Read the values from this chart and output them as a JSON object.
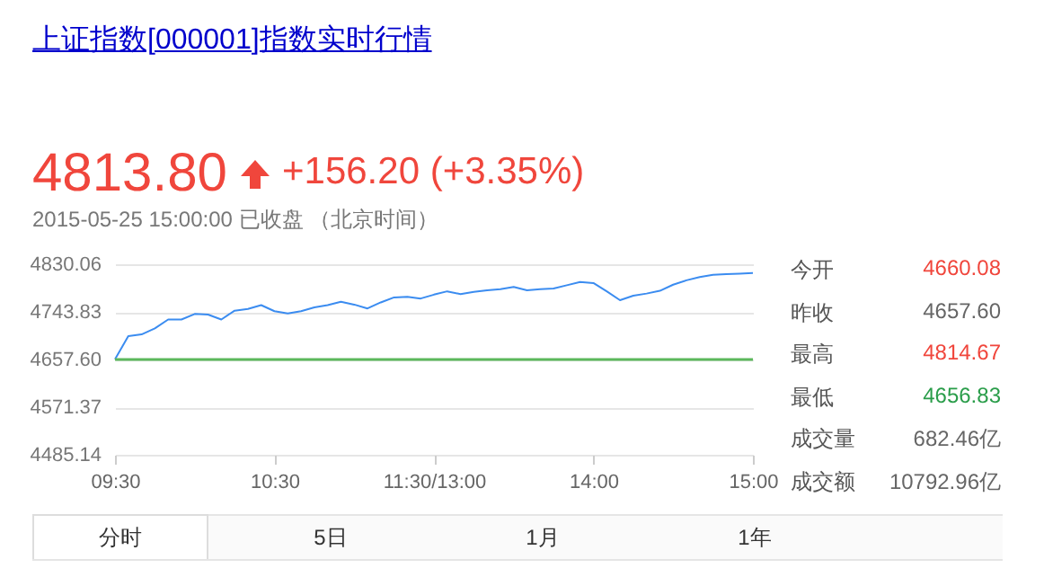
{
  "chart_data": {
    "type": "line",
    "title": "上证指数[000001]指数实时行情",
    "annotations": [
      "4813.80",
      "+156.20 (+3.35%)",
      "2015-05-25 15:00:00  已收盘 （北京时间）",
      "今开",
      "4660.08",
      "昨收",
      "4657.60",
      "最高",
      "4814.67",
      "最低",
      "4656.83",
      "成交量",
      "682.46亿",
      "成交额",
      "10792.96亿",
      "分时",
      "5日",
      "1月",
      "1年"
    ],
    "categories": [
      "09:30",
      null,
      null,
      null,
      null,
      null,
      null,
      null,
      null,
      null,
      null,
      null,
      "10:30",
      null,
      null,
      null,
      null,
      null,
      null,
      null,
      null,
      null,
      null,
      null,
      "11:30/13:00",
      null,
      null,
      null,
      null,
      null,
      null,
      null,
      null,
      null,
      null,
      null,
      "14:00",
      null,
      null,
      null,
      null,
      null,
      null,
      null,
      null,
      null,
      null,
      null,
      "15:00"
    ],
    "series": [
      {
        "color": "#3b8cf0",
        "values": [
          4658,
          4700,
          4703,
          4714,
          4730,
          4730,
          4740,
          4739,
          4730,
          4746,
          4749,
          4756,
          4745,
          4741,
          4745,
          4752,
          4756,
          4762,
          4757,
          4750,
          4761,
          4770,
          4771,
          4768,
          4775,
          4781,
          4776,
          4780,
          4783,
          4785,
          4789,
          4783,
          4785,
          4786,
          4792,
          4798,
          4796,
          4781,
          4765,
          4773,
          4777,
          4782,
          4793,
          4801,
          4807,
          4811,
          4812,
          4813,
          4814
        ]
      }
    ],
    "ylim": [
      4485.14,
      4830.06
    ],
    "yticks": [
      4485.14,
      4571.37,
      {
        "value": 4657.6,
        "label": "4657.60"
      },
      4743.83,
      4830.06
    ],
    "grid": "y",
    "ref_lines": [
      {
        "axis": "y",
        "value": 4657.6,
        "color": "#5cb85c"
      }
    ]
  }
}
